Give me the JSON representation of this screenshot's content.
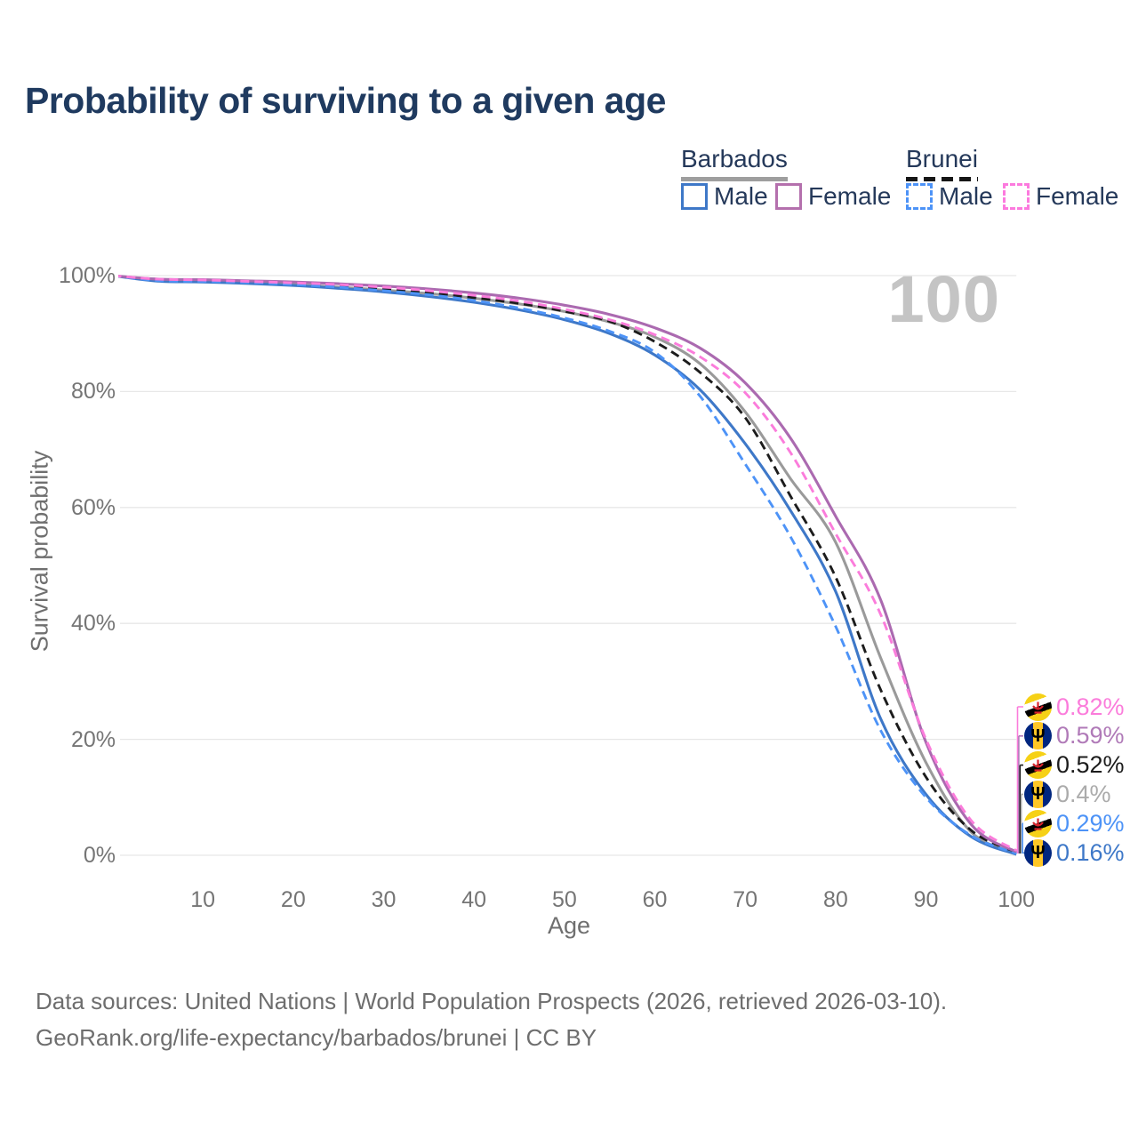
{
  "header": {
    "title": "Probability of surviving to a given age"
  },
  "legend": {
    "groups": [
      {
        "label": "Barbados",
        "underline": "solid",
        "underline_color": "#9e9e9e",
        "items": [
          {
            "label": "Male",
            "color": "#3e78c8",
            "dash": false
          },
          {
            "label": "Female",
            "color": "#b470ad",
            "dash": false
          }
        ]
      },
      {
        "label": "Brunei",
        "underline": "dashed",
        "underline_color": "#161616",
        "items": [
          {
            "label": "Male",
            "color": "#4d93f7",
            "dash": true
          },
          {
            "label": "Female",
            "color": "#fc7ade",
            "dash": true
          }
        ]
      }
    ]
  },
  "watermark": "100",
  "axes": {
    "x_title": "Age",
    "y_title": "Survival probability",
    "xtick_values": [
      10,
      20,
      30,
      40,
      50,
      60,
      70,
      80,
      90,
      100
    ],
    "xtick_labels": [
      "10",
      "20",
      "30",
      "40",
      "50",
      "60",
      "70",
      "80",
      "90",
      "100"
    ],
    "ytick_values": [
      0,
      20,
      40,
      60,
      80,
      100
    ],
    "ytick_labels": [
      "0%",
      "20%",
      "40%",
      "60%",
      "80%",
      "100%"
    ]
  },
  "chart_data": {
    "type": "line",
    "title": "Probability of surviving to a given age",
    "xlabel": "Age",
    "ylabel": "Survival probability",
    "xlim": [
      0,
      100
    ],
    "ylim": [
      0,
      100
    ],
    "grid": true,
    "age_indicator": "100",
    "x": [
      0,
      5,
      10,
      15,
      20,
      25,
      30,
      35,
      40,
      45,
      50,
      55,
      60,
      65,
      70,
      75,
      80,
      85,
      90,
      95,
      100
    ],
    "series": [
      {
        "name": "Barbados Total",
        "country": "barbados",
        "color": "#9a9a9a",
        "dash": false,
        "values": [
          100,
          99.2,
          99.05,
          98.85,
          98.45,
          98.0,
          97.5,
          96.9,
          96.1,
          95.1,
          93.8,
          92.0,
          89.4,
          84.8,
          76.5,
          65.0,
          54.0,
          34.0,
          16.0,
          4.0,
          0.4
        ]
      },
      {
        "name": "Brunei Total",
        "country": "brunei",
        "color": "#1c1c1c",
        "dash": true,
        "values": [
          100,
          99.3,
          99.15,
          98.95,
          98.6,
          98.2,
          97.7,
          97.05,
          96.2,
          95.2,
          93.85,
          92.1,
          88.6,
          83.3,
          75.5,
          62.0,
          48.0,
          28.5,
          13.5,
          4.3,
          0.52
        ]
      },
      {
        "name": "Barbados Male",
        "country": "barbados",
        "color": "#3e78c8",
        "dash": false,
        "values": [
          100,
          99.05,
          98.9,
          98.65,
          98.3,
          97.8,
          97.2,
          96.4,
          95.4,
          94.1,
          92.4,
          90.0,
          86.3,
          80.3,
          71.0,
          59.5,
          45.5,
          23.5,
          10.5,
          3.2,
          0.16
        ]
      },
      {
        "name": "Brunei Male",
        "country": "brunei",
        "color": "#4d93f7",
        "dash": true,
        "values": [
          100,
          99.15,
          99.0,
          98.8,
          98.45,
          98.0,
          97.4,
          96.7,
          95.7,
          94.4,
          92.7,
          90.4,
          86.8,
          79.2,
          67.5,
          55.0,
          39.5,
          21.5,
          10.0,
          3.4,
          0.29
        ]
      },
      {
        "name": "Barbados Female",
        "country": "barbados",
        "color": "#ab6ab0",
        "dash": false,
        "values": [
          100,
          99.4,
          99.3,
          99.1,
          98.9,
          98.6,
          98.2,
          97.7,
          97.0,
          96.1,
          94.9,
          93.3,
          91.0,
          87.5,
          81.5,
          72.0,
          58.5,
          44.0,
          19.5,
          5.3,
          0.59
        ]
      },
      {
        "name": "Brunei Female",
        "country": "brunei",
        "color": "#fb7cdb",
        "dash": true,
        "values": [
          100,
          99.4,
          99.25,
          99.0,
          98.75,
          98.45,
          98.0,
          97.4,
          96.6,
          95.6,
          94.2,
          92.4,
          89.8,
          86.0,
          79.8,
          69.5,
          55.5,
          41.5,
          20.0,
          6.0,
          0.82
        ]
      }
    ]
  },
  "end_labels": [
    {
      "flag": "brunei",
      "text": "0.82%",
      "value": 0.82,
      "color": "#fb7cdb"
    },
    {
      "flag": "barbados",
      "text": "0.59%",
      "value": 0.59,
      "color": "#b07ab8"
    },
    {
      "flag": "brunei",
      "text": "0.52%",
      "value": 0.52,
      "color": "#1c1c1c"
    },
    {
      "flag": "barbados",
      "text": "0.4%",
      "value": 0.4,
      "color": "#ababab"
    },
    {
      "flag": "brunei",
      "text": "0.29%",
      "value": 0.29,
      "color": "#4d93f7"
    },
    {
      "flag": "barbados",
      "text": "0.16%",
      "value": 0.16,
      "color": "#3e78c8"
    }
  ],
  "icons": {
    "barbados_flag": "barbados-flag-icon",
    "brunei_flag": "brunei-flag-icon",
    "barbados_trident_glyph": "Ψ"
  },
  "footer": {
    "line1": "Data sources: United Nations | World Population Prospects (2026, retrieved 2026-03-10).",
    "line2": "GeoRank.org/life-expectancy/barbados/brunei | CC BY"
  }
}
